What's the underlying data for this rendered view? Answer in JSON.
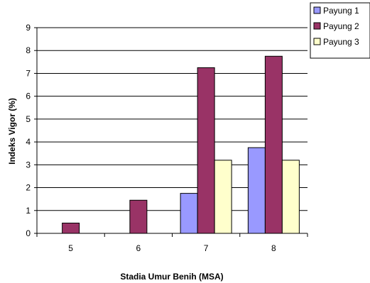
{
  "chart_data": {
    "type": "bar",
    "title": "",
    "xlabel": "Stadia Umur Benih (MSA)",
    "ylabel": "Indeks Vigor (%)",
    "ylim": [
      0,
      9
    ],
    "yticks": [
      0,
      1,
      2,
      3,
      4,
      5,
      6,
      7,
      8,
      9
    ],
    "grid": "horizontal",
    "legend_position": "top-right",
    "categories": [
      "5",
      "6",
      "7",
      "8"
    ],
    "series": [
      {
        "name": "Payung 1",
        "color": "#9999ff",
        "values": [
          0,
          0,
          1.75,
          3.75
        ]
      },
      {
        "name": "Payung 2",
        "color": "#993366",
        "values": [
          0.45,
          1.45,
          7.25,
          7.75
        ]
      },
      {
        "name": "Payung 3",
        "color": "#ffffcc",
        "values": [
          0,
          0,
          3.2,
          3.2
        ]
      }
    ]
  }
}
